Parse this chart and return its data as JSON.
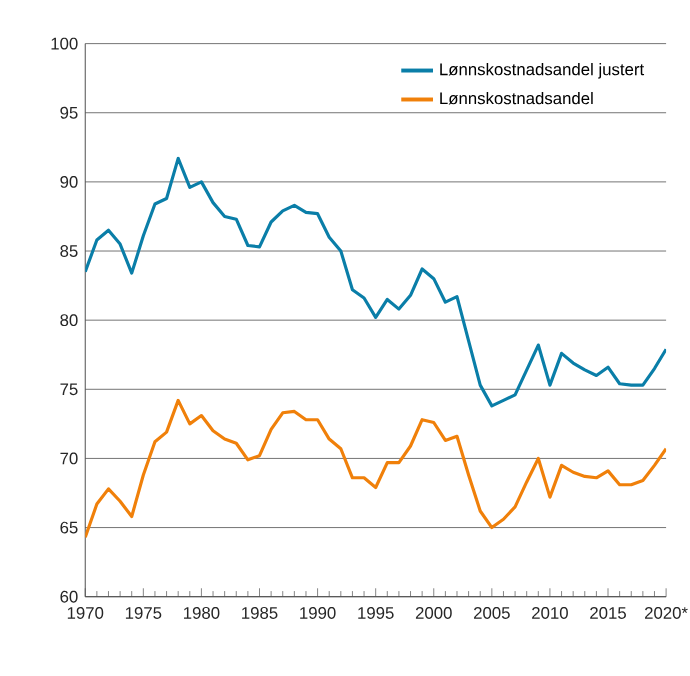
{
  "chart_data": {
    "type": "line",
    "x": [
      1970,
      1971,
      1972,
      1973,
      1974,
      1975,
      1976,
      1977,
      1978,
      1979,
      1980,
      1981,
      1982,
      1983,
      1984,
      1985,
      1986,
      1987,
      1988,
      1989,
      1990,
      1991,
      1992,
      1993,
      1994,
      1995,
      1996,
      1997,
      1998,
      1999,
      2000,
      2001,
      2002,
      2003,
      2004,
      2005,
      2006,
      2007,
      2008,
      2009,
      2010,
      2011,
      2012,
      2013,
      2014,
      2015,
      2016,
      2017,
      2018,
      2019,
      2020
    ],
    "series": [
      {
        "name": "Lønnskostnadsandel justert",
        "color": "#0a7ea8",
        "values": [
          83.5,
          85.8,
          86.5,
          85.5,
          83.4,
          86.1,
          88.4,
          88.8,
          91.7,
          89.6,
          90.0,
          88.5,
          87.5,
          87.3,
          85.4,
          85.3,
          87.1,
          87.9,
          88.3,
          87.8,
          87.7,
          86.0,
          85.0,
          82.2,
          81.6,
          80.2,
          81.5,
          80.8,
          81.8,
          83.7,
          83.0,
          81.3,
          81.7,
          78.5,
          75.3,
          73.8,
          74.2,
          74.6,
          76.4,
          78.2,
          75.3,
          77.6,
          76.9,
          76.4,
          76.0,
          76.6,
          75.4,
          75.3,
          75.3,
          76.5,
          77.9
        ]
      },
      {
        "name": "Lønnskostnadsandel",
        "color": "#f0800a",
        "values": [
          64.3,
          66.7,
          67.8,
          66.9,
          65.8,
          68.8,
          71.2,
          71.9,
          74.2,
          72.5,
          73.1,
          72.0,
          71.4,
          71.1,
          69.9,
          70.2,
          72.1,
          73.3,
          73.4,
          72.8,
          72.8,
          71.4,
          70.7,
          68.6,
          68.6,
          67.9,
          69.7,
          69.7,
          70.9,
          72.8,
          72.6,
          71.3,
          71.6,
          68.8,
          66.2,
          65.0,
          65.6,
          66.5,
          68.3,
          70.0,
          67.2,
          69.5,
          69.0,
          68.7,
          68.6,
          69.1,
          68.1,
          68.1,
          68.4,
          69.5,
          70.7
        ]
      }
    ],
    "xlim": [
      1970,
      2020
    ],
    "xticks": [
      1970,
      1975,
      1980,
      1985,
      1990,
      1995,
      2000,
      2005,
      2010,
      2015,
      {
        "value": 2020,
        "label": "2020*"
      }
    ],
    "ylim": [
      60,
      100
    ],
    "yticks": [
      60,
      65,
      70,
      75,
      80,
      85,
      90,
      95,
      100
    ],
    "grid": "y",
    "legend": "top right",
    "marker": "none",
    "line_style": "solid"
  }
}
